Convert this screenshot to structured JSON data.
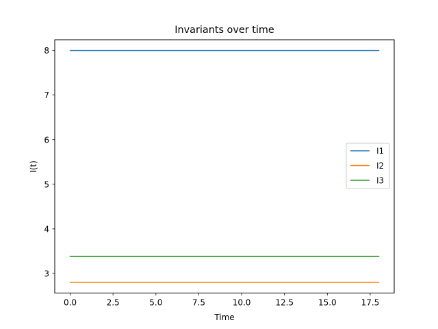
{
  "chart_data": {
    "type": "line",
    "title": "Invariants over time",
    "xlabel": "Time",
    "ylabel": "I(t)",
    "xlim": [
      -0.9,
      18.9
    ],
    "ylim": [
      2.56,
      8.24
    ],
    "x_ticks": [
      0.0,
      2.5,
      5.0,
      7.5,
      10.0,
      12.5,
      15.0,
      17.5
    ],
    "x_tick_labels": [
      "0.0",
      "2.5",
      "5.0",
      "7.5",
      "10.0",
      "12.5",
      "15.0",
      "17.5"
    ],
    "y_ticks": [
      3,
      4,
      5,
      6,
      7,
      8
    ],
    "y_tick_labels": [
      "3",
      "4",
      "5",
      "6",
      "7",
      "8"
    ],
    "grid": false,
    "legend_position": "center-right",
    "series": [
      {
        "name": "I1",
        "color": "#1f77b4",
        "x": [
          0,
          18
        ],
        "values": [
          8.0,
          8.0
        ]
      },
      {
        "name": "I2",
        "color": "#ff7f0e",
        "x": [
          0,
          18
        ],
        "values": [
          2.8,
          2.8
        ]
      },
      {
        "name": "I3",
        "color": "#2ca02c",
        "x": [
          0,
          18
        ],
        "values": [
          3.38,
          3.38
        ]
      }
    ]
  }
}
